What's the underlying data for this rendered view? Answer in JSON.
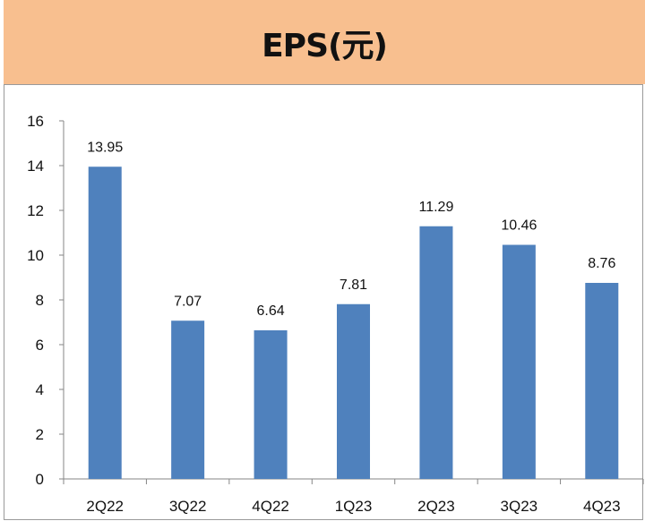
{
  "chart_data": {
    "type": "bar",
    "title": "EPS(元)",
    "categories": [
      "2Q22",
      "3Q22",
      "4Q22",
      "1Q23",
      "2Q23",
      "3Q23",
      "4Q23"
    ],
    "values": [
      13.95,
      7.07,
      6.64,
      7.81,
      11.29,
      10.46,
      8.76
    ],
    "data_labels": [
      "13.95",
      "7.07",
      "6.64",
      "7.81",
      "11.29",
      "10.46",
      "8.76"
    ],
    "xlabel": "",
    "ylabel": "",
    "ylim": [
      0,
      16
    ],
    "yticks": [
      "0",
      "2",
      "4",
      "6",
      "8",
      "10",
      "12",
      "14",
      "16"
    ],
    "grid": false,
    "legend": "none",
    "colors": {
      "bar": "#4F81BD",
      "header": "#F8BF8F"
    }
  }
}
